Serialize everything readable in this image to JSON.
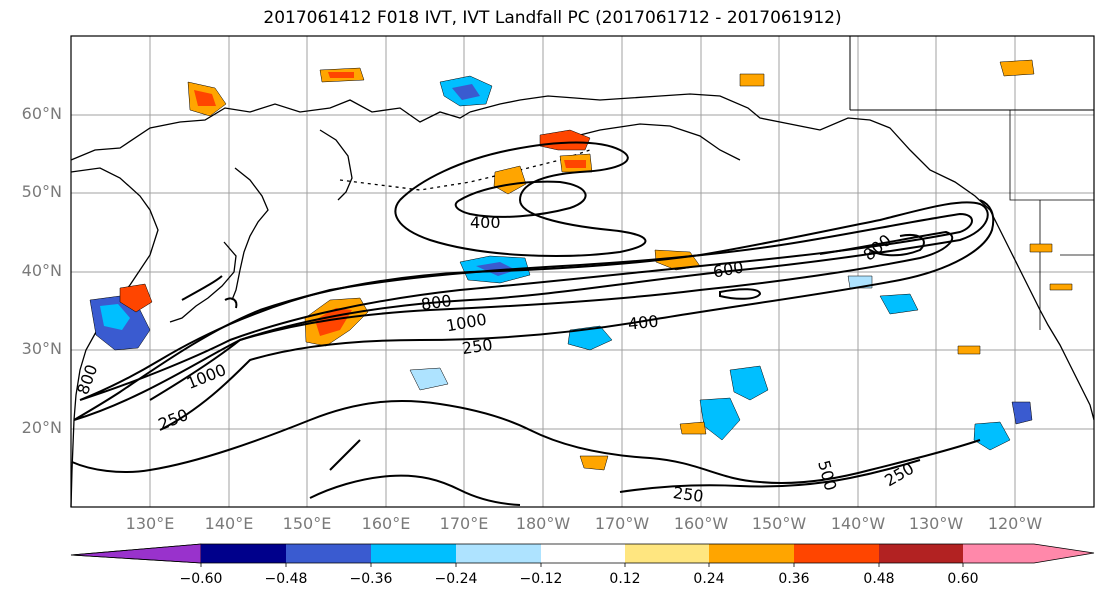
{
  "title": "2017061412 F018 IVT, IVT Landfall PC (2017061712 - 2017061912)",
  "lat_labels": [
    "60°N",
    "50°N",
    "40°N",
    "30°N",
    "20°N"
  ],
  "lon_labels": [
    "130°E",
    "140°E",
    "150°E",
    "160°E",
    "170°E",
    "180°W",
    "170°W",
    "160°W",
    "150°W",
    "140°W",
    "130°W",
    "120°W"
  ],
  "contour_labels": [
    "400",
    "600",
    "800",
    "800",
    "1000",
    "400",
    "250",
    "1000",
    "250",
    "250",
    "250",
    "800",
    "500"
  ],
  "colorbar": {
    "ticks": [
      "−0.60",
      "−0.48",
      "−0.36",
      "−0.24",
      "−0.12",
      "0.12",
      "0.24",
      "0.36",
      "0.48",
      "0.60"
    ],
    "colors": [
      "#9932cc",
      "#00008b",
      "#3a5bd0",
      "#00bfff",
      "#aee3ff",
      "#ffffff",
      "#ffe680",
      "#ffa500",
      "#ff4500",
      "#b22222",
      "#ff88aa"
    ]
  },
  "colors": {
    "land_line": "#000000",
    "grid": "#a0a0a0",
    "axis_label": "#7a7a7a"
  }
}
